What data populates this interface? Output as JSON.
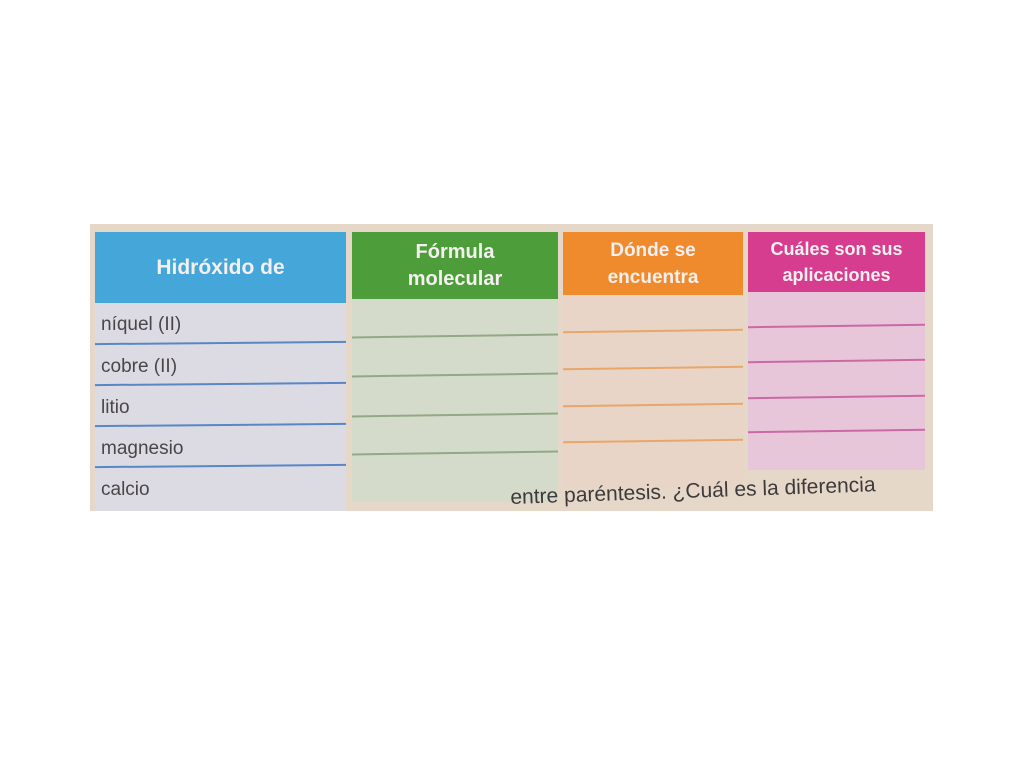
{
  "table": {
    "headers": [
      "Hidróxido de",
      "Fórmula molecular",
      "Dónde se encuentra",
      "Cuáles son sus aplicaciones"
    ],
    "header_lines": [
      [
        "Hidróxido de"
      ],
      [
        "Fórmula",
        "molecular"
      ],
      [
        "Dónde se",
        "encuentra"
      ],
      [
        "Cuáles son sus",
        "aplicaciones"
      ]
    ],
    "rows": [
      "níquel (II)",
      "cobre (II)",
      "litio",
      "magnesio",
      "calcio"
    ],
    "colors": {
      "blue": "#3fa3d8",
      "green": "#4a9c3a",
      "orange": "#ee8a2c",
      "pink": "#d43b8e"
    }
  },
  "footer_text": "entre paréntesis. ¿Cuál es la diferencia"
}
